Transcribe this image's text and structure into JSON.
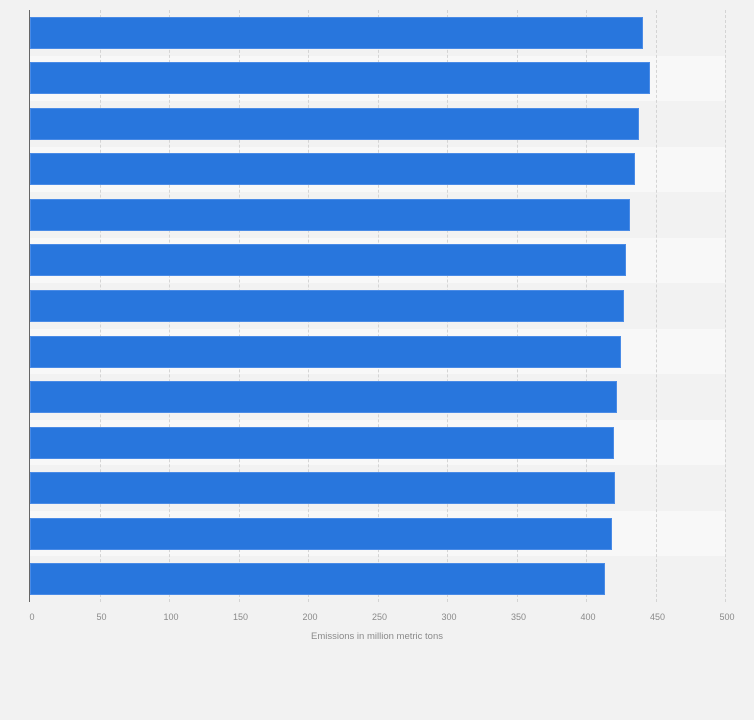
{
  "chart_data": {
    "type": "bar",
    "orientation": "horizontal",
    "title": "",
    "xlabel": "Emissions in million metric tons",
    "ylabel": "",
    "xlim": [
      0,
      500
    ],
    "x_ticks": [
      "0",
      "50",
      "100",
      "150",
      "200",
      "250",
      "300",
      "350",
      "400",
      "450",
      "500"
    ],
    "grid": true,
    "legend": null,
    "categories": [
      "",
      "",
      "",
      "",
      "",
      "",
      "",
      "",
      "",
      "",
      "",
      "",
      ""
    ],
    "values": [
      441,
      446,
      438,
      435,
      432,
      429,
      427,
      425,
      422,
      420,
      421,
      419,
      414
    ],
    "bar_color": "#2876dd"
  },
  "axis": {
    "x_label": "Emissions in million metric tons",
    "ticks": [
      "0",
      "50",
      "100",
      "150",
      "200",
      "250",
      "300",
      "350",
      "400",
      "450",
      "500"
    ]
  },
  "colors": {
    "bar": "#2876dd",
    "background": "#f2f2f2",
    "stripe_light": "#f8f8f8",
    "axis_line": "#666666",
    "tick_text": "#8a8a8a"
  }
}
